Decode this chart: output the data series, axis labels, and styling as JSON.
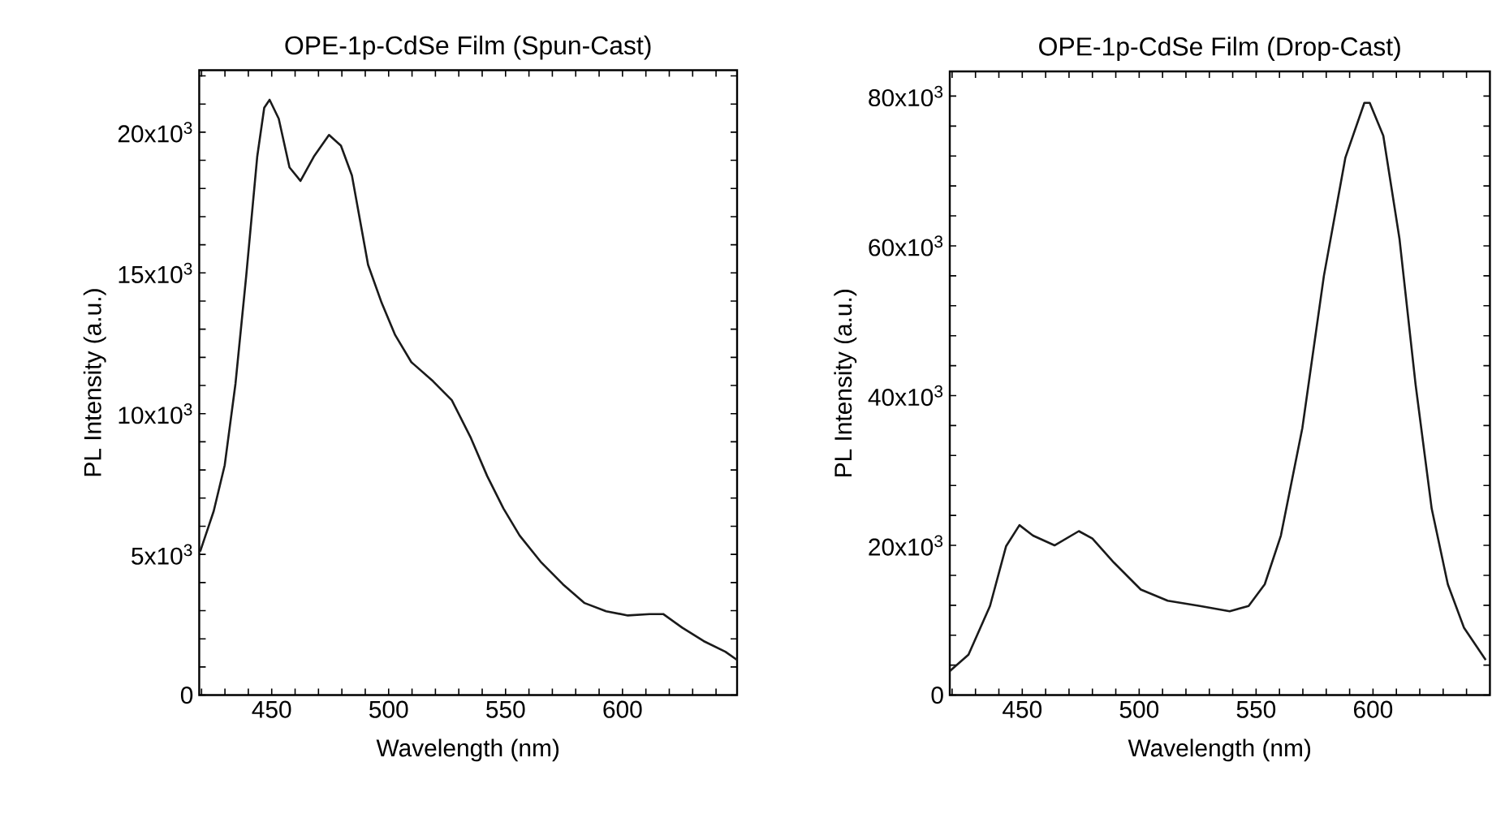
{
  "chart_data": [
    {
      "type": "line",
      "title": "OPE-1p-CdSe Film (Spun-Cast)",
      "xlabel": "Wavelength (nm)",
      "ylabel": "PL Intensity (a.u.)",
      "color": "#1a1a1a",
      "xlim": [
        419,
        649
      ],
      "ylim": [
        0,
        22200
      ],
      "xticks": [
        {
          "value": 420,
          "label": null
        },
        {
          "value": 430,
          "label": null
        },
        {
          "value": 440,
          "label": null
        },
        450,
        {
          "value": 460,
          "label": null
        },
        {
          "value": 470,
          "label": null
        },
        {
          "value": 480,
          "label": null
        },
        {
          "value": 490,
          "label": null
        },
        500,
        {
          "value": 510,
          "label": null
        },
        {
          "value": 520,
          "label": null
        },
        {
          "value": 530,
          "label": null
        },
        {
          "value": 540,
          "label": null
        },
        550,
        {
          "value": 560,
          "label": null
        },
        {
          "value": 570,
          "label": null
        },
        {
          "value": 580,
          "label": null
        },
        {
          "value": 590,
          "label": null
        },
        600,
        {
          "value": 610,
          "label": null
        },
        {
          "value": 620,
          "label": null
        },
        {
          "value": 630,
          "label": null
        },
        {
          "value": 640,
          "label": null
        }
      ],
      "yticks": [
        0,
        {
          "value": 1000,
          "label": null
        },
        {
          "value": 2000,
          "label": null
        },
        {
          "value": 3000,
          "label": null
        },
        {
          "value": 4000,
          "label": null
        },
        {
          "value": 5000,
          "label": "5x10$^{3}$"
        },
        {
          "value": 6000,
          "label": null
        },
        {
          "value": 7000,
          "label": null
        },
        {
          "value": 8000,
          "label": null
        },
        {
          "value": 9000,
          "label": null
        },
        {
          "value": 10000,
          "label": "10x10$^{3}$"
        },
        {
          "value": 11000,
          "label": null
        },
        {
          "value": 12000,
          "label": null
        },
        {
          "value": 13000,
          "label": null
        },
        {
          "value": 14000,
          "label": null
        },
        {
          "value": 15000,
          "label": "15x10$^{3}$"
        },
        {
          "value": 16000,
          "label": null
        },
        {
          "value": 17000,
          "label": null
        },
        {
          "value": 18000,
          "label": null
        },
        {
          "value": 19000,
          "label": null
        },
        {
          "value": 20000,
          "label": "20x10$^{3}$"
        },
        {
          "value": 21000,
          "label": null
        },
        {
          "value": 22000,
          "label": null
        }
      ],
      "x": [
        419.4,
        425.2,
        429.9,
        434.5,
        439.1,
        443.8,
        446.8,
        449.1,
        453,
        457.6,
        462.3,
        468,
        474.5,
        479.6,
        484.3,
        491.2,
        497,
        502.8,
        509.7,
        519,
        527,
        535.2,
        542.1,
        549.1,
        556,
        565.3,
        574.5,
        583.8,
        593,
        602.3,
        611.6,
        617.4,
        625.5,
        634.7,
        644,
        649
      ],
      "values": [
        5100,
        6540,
        8170,
        11060,
        14900,
        19130,
        20870,
        21150,
        20480,
        18750,
        18270,
        19130,
        19900,
        19520,
        18460,
        15290,
        13940,
        12790,
        11830,
        11150,
        10480,
        9130,
        7790,
        6630,
        5670,
        4710,
        3940,
        3270,
        2980,
        2830,
        2880,
        2880,
        2400,
        1920,
        1540,
        1250
      ]
    },
    {
      "type": "line",
      "title": "OPE-1p-CdSe Film (Drop-Cast)",
      "xlabel": "Wavelength (nm)",
      "ylabel": "PL Intensity (a.u.)",
      "color": "#1a1a1a",
      "xlim": [
        419,
        650
      ],
      "ylim": [
        0,
        83300
      ],
      "xticks": [
        {
          "value": 420,
          "label": null
        },
        {
          "value": 430,
          "label": null
        },
        {
          "value": 440,
          "label": null
        },
        450,
        {
          "value": 460,
          "label": null
        },
        {
          "value": 470,
          "label": null
        },
        {
          "value": 480,
          "label": null
        },
        {
          "value": 490,
          "label": null
        },
        500,
        {
          "value": 510,
          "label": null
        },
        {
          "value": 520,
          "label": null
        },
        {
          "value": 530,
          "label": null
        },
        {
          "value": 540,
          "label": null
        },
        550,
        {
          "value": 560,
          "label": null
        },
        {
          "value": 570,
          "label": null
        },
        {
          "value": 580,
          "label": null
        },
        {
          "value": 590,
          "label": null
        },
        600,
        {
          "value": 610,
          "label": null
        },
        {
          "value": 620,
          "label": null
        },
        {
          "value": 630,
          "label": null
        },
        {
          "value": 640,
          "label": null
        }
      ],
      "yticks": [
        0,
        {
          "value": 4000,
          "label": null
        },
        {
          "value": 8000,
          "label": null
        },
        {
          "value": 12000,
          "label": null
        },
        {
          "value": 16000,
          "label": null
        },
        {
          "value": 20000,
          "label": "20x10$^{3}$"
        },
        {
          "value": 24000,
          "label": null
        },
        {
          "value": 28000,
          "label": null
        },
        {
          "value": 32000,
          "label": null
        },
        {
          "value": 36000,
          "label": null
        },
        {
          "value": 40000,
          "label": "40x10$^{3}$"
        },
        {
          "value": 44000,
          "label": null
        },
        {
          "value": 48000,
          "label": null
        },
        {
          "value": 52000,
          "label": null
        },
        {
          "value": 56000,
          "label": null
        },
        {
          "value": 60000,
          "label": "60x10$^{3}$"
        },
        {
          "value": 64000,
          "label": null
        },
        {
          "value": 68000,
          "label": null
        },
        {
          "value": 72000,
          "label": null
        },
        {
          "value": 76000,
          "label": null
        },
        {
          "value": 80000,
          "label": "80x10$^{3}$"
        }
      ],
      "x": [
        419,
        427,
        436.2,
        443.1,
        448.8,
        454.6,
        463.8,
        474.2,
        480,
        489.2,
        500.7,
        512.2,
        526,
        538.7,
        546.8,
        553.7,
        560.6,
        569.8,
        579,
        588.2,
        596.3,
        598.6,
        604.4,
        611.3,
        618.2,
        625.1,
        632,
        638.9,
        648.2
      ],
      "values": [
        3200,
        5400,
        11900,
        19900,
        22700,
        21300,
        20000,
        21900,
        20900,
        17700,
        14100,
        12600,
        11900,
        11200,
        11900,
        14800,
        21300,
        35700,
        56000,
        71800,
        79100,
        79100,
        74700,
        61000,
        41500,
        24900,
        14800,
        9000,
        4700
      ]
    }
  ]
}
